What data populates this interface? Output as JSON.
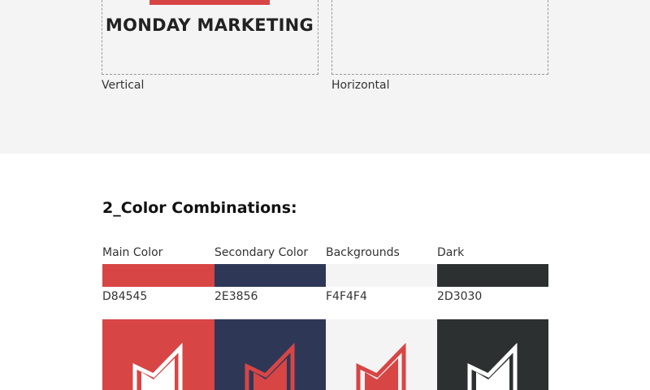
{
  "logo_section": {
    "brand_text": "MONDAY MARKETING",
    "variants": [
      "Vertical",
      "Horizontal"
    ]
  },
  "colors_section": {
    "heading": "2_Color Combinations:",
    "swatches": [
      {
        "name": "Main Color",
        "hex": "D84545",
        "color": "#d84545"
      },
      {
        "name": "Secondary Color",
        "hex": "2E3856",
        "color": "#2e3856"
      },
      {
        "name": "Backgrounds",
        "hex": "F4F4F4",
        "color": "#f4f4f4"
      },
      {
        "name": "Dark",
        "hex": "2D3030",
        "color": "#2d3030"
      }
    ],
    "tiles": [
      {
        "bg": "#d84545",
        "outline": "#ffffff",
        "fill": "#ffffff",
        "icon": "logo-mark-icon"
      },
      {
        "bg": "#2e3856",
        "outline": "#d84545",
        "fill": "#d84545",
        "icon": "logo-mark-icon"
      },
      {
        "bg": "#f4f4f4",
        "outline": "#d84545",
        "fill": "#d84545",
        "icon": "logo-mark-icon"
      },
      {
        "bg": "#2d3030",
        "outline": "#ffffff",
        "fill": "#ffffff",
        "icon": "logo-mark-icon"
      }
    ]
  }
}
